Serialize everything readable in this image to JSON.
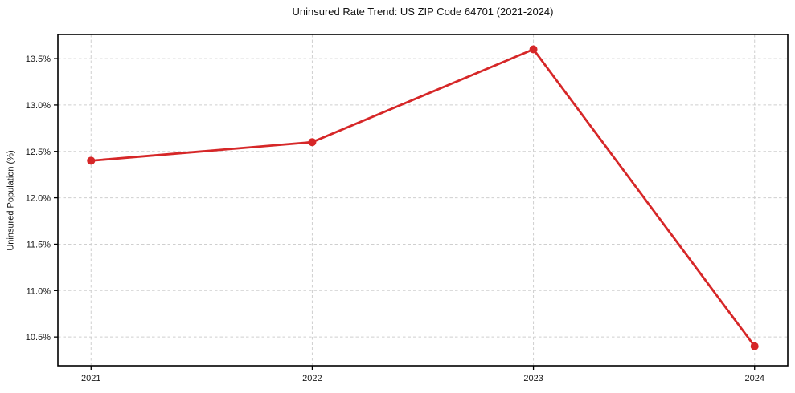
{
  "chart_data": {
    "type": "line",
    "title": "Uninsured Rate Trend: US ZIP Code 64701 (2021-2024)",
    "xlabel": "",
    "ylabel": "Uninsured Population (%)",
    "x": [
      2021,
      2022,
      2023,
      2024
    ],
    "x_tick_labels": [
      "2021",
      "2022",
      "2023",
      "2024"
    ],
    "series": [
      {
        "name": "uninsured-rate",
        "values": [
          12.4,
          12.6,
          13.6,
          10.4
        ],
        "color": "#d62728",
        "marker": "circle"
      }
    ],
    "y_ticks": [
      10.5,
      11.0,
      11.5,
      12.0,
      12.5,
      13.0,
      13.5
    ],
    "y_tick_labels": [
      "10.5%",
      "11.0%",
      "11.5%",
      "12.0%",
      "12.5%",
      "13.0%",
      "13.5%"
    ],
    "xlim": [
      2020.85,
      2024.15
    ],
    "ylim": [
      10.19,
      13.76
    ],
    "grid": "dashed",
    "legend": "none",
    "grid_color": "#cfcfcf",
    "spine_color": "#000000",
    "tick_label_color": "#191919",
    "background": "#ffffff"
  }
}
